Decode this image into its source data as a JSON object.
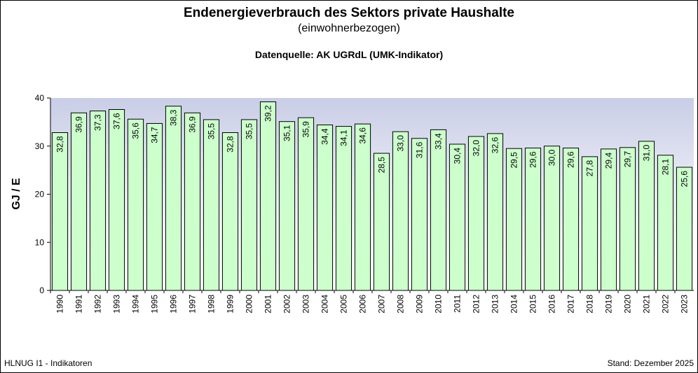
{
  "header": {
    "title": "Endenergieverbrauch des Sektors private Haushalte",
    "subtitle": "(einwohnerbezogen)",
    "source": "Datenquelle: AK UGRdL (UMK-Indikator)"
  },
  "footer": {
    "left": "HLNUG I1 - Indikatoren",
    "right": "Stand: Dezember 2025"
  },
  "chart_data": {
    "type": "bar",
    "title": "Endenergieverbrauch des Sektors private Haushalte",
    "subtitle": "(einwohnerbezogen)",
    "xlabel": "",
    "ylabel": "GJ / E",
    "ylim": [
      0,
      40
    ],
    "yticks": [
      0,
      10,
      20,
      30,
      40
    ],
    "grid": false,
    "bar_color": "#ccffcc",
    "plot_background": "gradient #ccd0e8 to #ffffff",
    "categories": [
      "1990",
      "1991",
      "1992",
      "1993",
      "1994",
      "1995",
      "1996",
      "1997",
      "1998",
      "1999",
      "2000",
      "2001",
      "2002",
      "2003",
      "2004",
      "2005",
      "2006",
      "2007",
      "2008",
      "2009",
      "2010",
      "2011",
      "2012",
      "2013",
      "2014",
      "2015",
      "2016",
      "2017",
      "2018",
      "2019",
      "2020",
      "2021",
      "2022",
      "2023"
    ],
    "values": [
      32.8,
      36.9,
      37.3,
      37.6,
      35.6,
      34.7,
      38.3,
      36.9,
      35.5,
      32.8,
      35.5,
      39.2,
      35.1,
      35.9,
      34.4,
      34.1,
      34.6,
      28.5,
      33.0,
      31.6,
      33.4,
      30.4,
      32.0,
      32.6,
      29.5,
      29.6,
      30.0,
      29.6,
      27.8,
      29.4,
      29.7,
      31.0,
      28.1,
      25.6
    ],
    "value_labels": [
      "32,8",
      "36,9",
      "37,3",
      "37,6",
      "35,6",
      "34,7",
      "38,3",
      "36,9",
      "35,5",
      "32,8",
      "35,5",
      "39,2",
      "35,1",
      "35,9",
      "34,4",
      "34,1",
      "34,6",
      "28,5",
      "33,0",
      "31,6",
      "33,4",
      "30,4",
      "32,0",
      "32,6",
      "29,5",
      "29,6",
      "30,0",
      "29,6",
      "27,8",
      "29,4",
      "29,7",
      "31,0",
      "28,1",
      "25,6"
    ]
  }
}
